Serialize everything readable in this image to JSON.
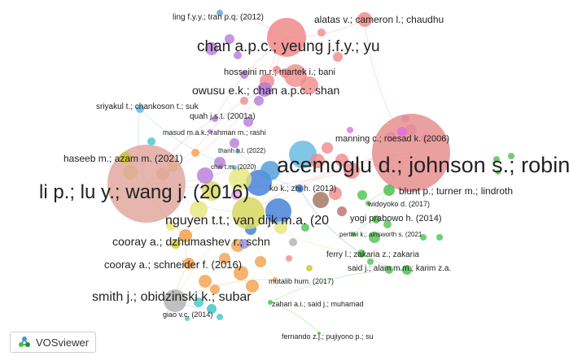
{
  "app": {
    "name": "VOSviewer"
  },
  "nodes": [
    {
      "id": "acemoglu",
      "label": "acemoglu d.; johnson s.; robin",
      "color": "#e88f8f",
      "weight": 10
    },
    {
      "id": "li",
      "label": "li p.; lu y.; wang j. (2016)",
      "color": "#e0a8a0",
      "weight": 10
    },
    {
      "id": "chan1",
      "label": "chan a.p.c.; yeung j.f.y.; yu",
      "color": "#f08a8a",
      "weight": 7
    },
    {
      "id": "nguyen",
      "label": "nguyen t.t.; van dijk m.a. (20",
      "color": "#d8d860",
      "weight": 7
    },
    {
      "id": "smith",
      "label": "smith j.; obidzinski k.; subar",
      "color": "#b5b5b5",
      "weight": 6
    },
    {
      "id": "owusu",
      "label": "owusu e.k.; chan a.p.c.; shan",
      "color": "#b57ad8",
      "weight": 5
    },
    {
      "id": "cooray1",
      "label": "cooray a.; dzhumashev r.; schn",
      "color": "#f2a04c",
      "weight": 5
    },
    {
      "id": "cooray2",
      "label": "cooray a.; schneider f. (2016)",
      "color": "#f2a04c",
      "weight": 4
    },
    {
      "id": "haseeb",
      "label": "haseeb m.; azam m. (2021)",
      "color": "#c8c828",
      "weight": 4
    },
    {
      "id": "blunt",
      "label": "blunt p.; turner m.; lindroth",
      "color": "#50c050",
      "weight": 4
    },
    {
      "id": "ling",
      "label": "ling f.y.y.; tran p.q. (2012)",
      "color": "#6fa0e0",
      "weight": 3
    },
    {
      "id": "alatas",
      "label": "alatas v.; cameron l.; chaudhu",
      "color": "#f08a8a",
      "weight": 3
    },
    {
      "id": "hosseini",
      "label": "hosseini m.r.; martek i.; bani",
      "color": "#f08a8a",
      "weight": 3
    },
    {
      "id": "sriyakul",
      "label": "sriyakul t.; chankoson t.; suk",
      "color": "#60b8e0",
      "weight": 3
    },
    {
      "id": "manning",
      "label": "manning c.; roesad k. (2006)",
      "color": "#e070e0",
      "weight": 3
    },
    {
      "id": "yogi",
      "label": "yogi prabowo h. (2014)",
      "color": "#50c050",
      "weight": 3
    },
    {
      "id": "ferry",
      "label": "ferry l.; zakaria z.; zakaria",
      "color": "#50c050",
      "weight": 3
    },
    {
      "id": "said",
      "label": "said j.; alam m.m.; karim z.a.",
      "color": "#50c050",
      "weight": 3
    },
    {
      "id": "quah",
      "label": "quah j.s.t. (2001a)",
      "color": "#b57ad8",
      "weight": 2
    },
    {
      "id": "masud",
      "label": "masud m.a.k.; rahman m.; rashi",
      "color": "#b57ad8",
      "weight": 2
    },
    {
      "id": "thanh",
      "label": "thanh h.l. (2022)",
      "color": "#60b8e0",
      "weight": 1
    },
    {
      "id": "chai",
      "label": "chai t.m. (2020)",
      "color": "#60b8e0",
      "weight": 1
    },
    {
      "id": "ko",
      "label": "ko k.; zhi h. (2013)",
      "color": "#3c7ad8",
      "weight": 2
    },
    {
      "id": "widoyoko",
      "label": "widoyoko d. (2017)",
      "color": "#50c050",
      "weight": 1
    },
    {
      "id": "pertiwi",
      "label": "pertiwi k.; ainsworth s. (2021",
      "color": "#50c050",
      "weight": 1
    },
    {
      "id": "mutalib",
      "label": "mutalib hum. (2017)",
      "color": "#f2a04c",
      "weight": 1
    },
    {
      "id": "zahari",
      "label": "zahari a.i.; said j.; muhamad",
      "color": "#50c050",
      "weight": 1
    },
    {
      "id": "giao",
      "label": "giao v.c. (2014)",
      "color": "#40c8c8",
      "weight": 1
    },
    {
      "id": "fernando",
      "label": "fernando z.j.; pujiyono p.; su",
      "color": "#50c050",
      "weight": 1
    }
  ]
}
